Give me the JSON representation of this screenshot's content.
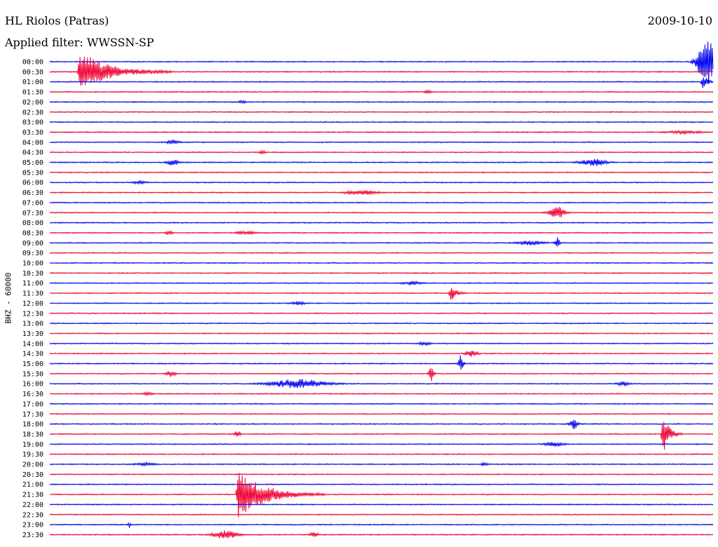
{
  "header": {
    "station": "HL Riolos (Patras)",
    "date": "2009-10-10",
    "filter_prefix": "Applied filter:",
    "filter_name": "WWSSN-SP"
  },
  "chart_data": {
    "type": "line",
    "title": "HL Riolos (Patras)",
    "subtitle": "Applied filter: WWSSN-SP",
    "date": "2009-10-10",
    "ylabel": "BHZ - 60000",
    "row_colors": [
      "#0000ee",
      "#ee0033"
    ],
    "rows": [
      {
        "label": "00:00",
        "color": "#0000ee",
        "events": [
          {
            "pos": 0.975,
            "amp": 34,
            "dur": 0.03,
            "kind": "burst"
          }
        ]
      },
      {
        "label": "00:30",
        "color": "#ee0033",
        "events": [
          {
            "pos": 0.045,
            "amp": 30,
            "dur": 0.14,
            "kind": "quake"
          }
        ]
      },
      {
        "label": "01:00",
        "color": "#0000ee",
        "events": [
          {
            "pos": 0.985,
            "amp": 12,
            "dur": 0.02,
            "kind": "quake"
          }
        ]
      },
      {
        "label": "01:30",
        "color": "#ee0033",
        "events": [
          {
            "pos": 0.565,
            "amp": 2,
            "dur": 0.01,
            "kind": "burst"
          }
        ]
      },
      {
        "label": "02:00",
        "color": "#0000ee",
        "events": [
          {
            "pos": 0.285,
            "amp": 2,
            "dur": 0.01,
            "kind": "burst"
          }
        ]
      },
      {
        "label": "02:30",
        "color": "#ee0033",
        "events": []
      },
      {
        "label": "03:00",
        "color": "#0000ee",
        "events": []
      },
      {
        "label": "03:30",
        "color": "#ee0033",
        "events": [
          {
            "pos": 0.93,
            "amp": 2,
            "dur": 0.05,
            "kind": "burst"
          }
        ]
      },
      {
        "label": "04:00",
        "color": "#0000ee",
        "events": [
          {
            "pos": 0.175,
            "amp": 3,
            "dur": 0.02,
            "kind": "burst"
          }
        ]
      },
      {
        "label": "04:30",
        "color": "#ee0033",
        "events": [
          {
            "pos": 0.315,
            "amp": 2,
            "dur": 0.01,
            "kind": "burst"
          }
        ]
      },
      {
        "label": "05:00",
        "color": "#0000ee",
        "events": [
          {
            "pos": 0.175,
            "amp": 4,
            "dur": 0.02,
            "kind": "burst"
          },
          {
            "pos": 0.8,
            "amp": 5,
            "dur": 0.04,
            "kind": "burst"
          }
        ]
      },
      {
        "label": "05:30",
        "color": "#ee0033",
        "events": []
      },
      {
        "label": "06:00",
        "color": "#0000ee",
        "events": [
          {
            "pos": 0.125,
            "amp": 2,
            "dur": 0.02,
            "kind": "burst"
          }
        ]
      },
      {
        "label": "06:30",
        "color": "#ee0033",
        "events": [
          {
            "pos": 0.445,
            "amp": 3,
            "dur": 0.05,
            "kind": "burst"
          }
        ]
      },
      {
        "label": "07:00",
        "color": "#0000ee",
        "events": []
      },
      {
        "label": "07:30",
        "color": "#ee0033",
        "events": [
          {
            "pos": 0.765,
            "amp": 9,
            "dur": 0.03,
            "kind": "spike"
          }
        ]
      },
      {
        "label": "08:00",
        "color": "#0000ee",
        "events": []
      },
      {
        "label": "08:30",
        "color": "#ee0033",
        "events": [
          {
            "pos": 0.175,
            "amp": 3,
            "dur": 0.01,
            "kind": "burst"
          },
          {
            "pos": 0.28,
            "amp": 2,
            "dur": 0.03,
            "kind": "burst"
          }
        ]
      },
      {
        "label": "09:00",
        "color": "#0000ee",
        "events": [
          {
            "pos": 0.705,
            "amp": 3,
            "dur": 0.04,
            "kind": "burst"
          },
          {
            "pos": 0.765,
            "amp": 8,
            "dur": 0.01,
            "kind": "spike"
          }
        ]
      },
      {
        "label": "09:30",
        "color": "#ee0033",
        "events": []
      },
      {
        "label": "10:00",
        "color": "#0000ee",
        "events": []
      },
      {
        "label": "10:30",
        "color": "#ee0033",
        "events": []
      },
      {
        "label": "11:00",
        "color": "#0000ee",
        "events": [
          {
            "pos": 0.53,
            "amp": 2,
            "dur": 0.03,
            "kind": "burst"
          }
        ]
      },
      {
        "label": "11:30",
        "color": "#ee0033",
        "events": [
          {
            "pos": 0.605,
            "amp": 11,
            "dur": 0.025,
            "kind": "quake"
          }
        ]
      },
      {
        "label": "12:00",
        "color": "#0000ee",
        "events": [
          {
            "pos": 0.365,
            "amp": 2,
            "dur": 0.02,
            "kind": "burst"
          }
        ]
      },
      {
        "label": "12:30",
        "color": "#ee0033",
        "events": []
      },
      {
        "label": "13:00",
        "color": "#0000ee",
        "events": []
      },
      {
        "label": "13:30",
        "color": "#ee0033",
        "events": []
      },
      {
        "label": "14:00",
        "color": "#0000ee",
        "events": [
          {
            "pos": 0.555,
            "amp": 2,
            "dur": 0.02,
            "kind": "burst"
          }
        ]
      },
      {
        "label": "14:30",
        "color": "#ee0033",
        "events": [
          {
            "pos": 0.625,
            "amp": 4,
            "dur": 0.02,
            "kind": "burst"
          }
        ]
      },
      {
        "label": "15:00",
        "color": "#0000ee",
        "events": [
          {
            "pos": 0.62,
            "amp": 12,
            "dur": 0.01,
            "kind": "spike"
          }
        ]
      },
      {
        "label": "15:30",
        "color": "#ee0033",
        "events": [
          {
            "pos": 0.175,
            "amp": 4,
            "dur": 0.015,
            "kind": "burst"
          },
          {
            "pos": 0.575,
            "amp": 10,
            "dur": 0.01,
            "kind": "spike"
          }
        ]
      },
      {
        "label": "16:00",
        "color": "#0000ee",
        "events": [
          {
            "pos": 0.33,
            "amp": 6,
            "dur": 0.09,
            "kind": "burst"
          },
          {
            "pos": 0.855,
            "amp": 3,
            "dur": 0.02,
            "kind": "burst"
          }
        ]
      },
      {
        "label": "16:30",
        "color": "#ee0033",
        "events": [
          {
            "pos": 0.14,
            "amp": 2,
            "dur": 0.015,
            "kind": "burst"
          }
        ]
      },
      {
        "label": "17:00",
        "color": "#0000ee",
        "events": []
      },
      {
        "label": "17:30",
        "color": "#ee0033",
        "events": []
      },
      {
        "label": "18:00",
        "color": "#0000ee",
        "events": [
          {
            "pos": 0.79,
            "amp": 7,
            "dur": 0.015,
            "kind": "spike"
          }
        ]
      },
      {
        "label": "18:30",
        "color": "#ee0033",
        "events": [
          {
            "pos": 0.278,
            "amp": 4,
            "dur": 0.01,
            "kind": "burst"
          },
          {
            "pos": 0.925,
            "amp": 28,
            "dur": 0.03,
            "kind": "quake"
          }
        ]
      },
      {
        "label": "19:00",
        "color": "#0000ee",
        "events": [
          {
            "pos": 0.745,
            "amp": 3,
            "dur": 0.03,
            "kind": "burst"
          }
        ]
      },
      {
        "label": "19:30",
        "color": "#ee0033",
        "events": []
      },
      {
        "label": "20:00",
        "color": "#0000ee",
        "events": [
          {
            "pos": 0.13,
            "amp": 2,
            "dur": 0.03,
            "kind": "burst"
          },
          {
            "pos": 0.65,
            "amp": 2,
            "dur": 0.01,
            "kind": "burst"
          }
        ]
      },
      {
        "label": "20:30",
        "color": "#ee0033",
        "events": []
      },
      {
        "label": "21:00",
        "color": "#0000ee",
        "events": []
      },
      {
        "label": "21:30",
        "color": "#ee0033",
        "events": [
          {
            "pos": 0.284,
            "amp": 36,
            "dur": 0.13,
            "kind": "quake"
          }
        ]
      },
      {
        "label": "22:00",
        "color": "#0000ee",
        "events": []
      },
      {
        "label": "22:30",
        "color": "#ee0033",
        "events": []
      },
      {
        "label": "23:00",
        "color": "#0000ee",
        "events": [
          {
            "pos": 0.12,
            "amp": 4,
            "dur": 0.005,
            "kind": "spike"
          }
        ]
      },
      {
        "label": "23:30",
        "color": "#ee0033",
        "events": [
          {
            "pos": 0.245,
            "amp": 6,
            "dur": 0.04,
            "kind": "burst"
          },
          {
            "pos": 0.39,
            "amp": 3,
            "dur": 0.015,
            "kind": "burst"
          }
        ]
      }
    ]
  }
}
